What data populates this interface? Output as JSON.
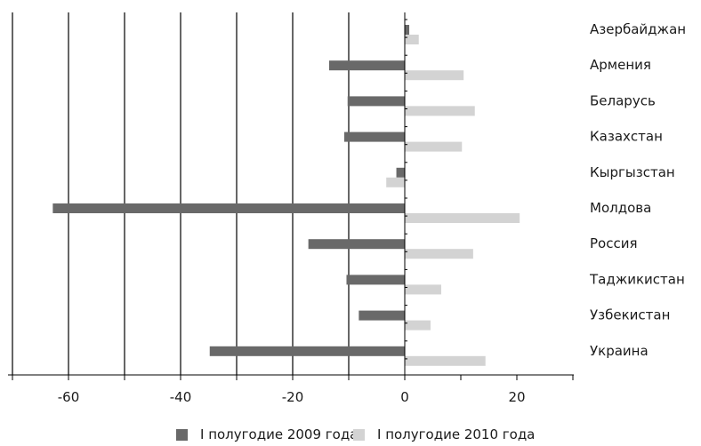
{
  "chart_data": {
    "type": "bar",
    "orientation": "horizontal",
    "title": "",
    "xlabel": "",
    "ylabel": "",
    "categories": [
      "Азербайджан",
      "Армения",
      "Беларусь",
      "Казахстан",
      "Кыргызстан",
      "Молдова",
      "Россия",
      "Таджикистан",
      "Узбекистан",
      "Украина"
    ],
    "series": [
      {
        "name": "I полугодие 2009 года",
        "color": "#696969",
        "values": [
          0.8,
          -13.5,
          -10.2,
          -10.8,
          -1.5,
          -62.8,
          -17.2,
          -10.4,
          -8.2,
          -34.8
        ]
      },
      {
        "name": "I полугодие 2010 года",
        "color": "#d3d3d3",
        "values": [
          2.5,
          10.5,
          12.5,
          10.2,
          -3.3,
          20.5,
          12.2,
          6.5,
          4.6,
          14.4
        ]
      }
    ],
    "xlim": [
      -70,
      30
    ],
    "xticks": [
      -60,
      -40,
      -20,
      0,
      20
    ],
    "grid": "vertical",
    "legend_position": "bottom"
  }
}
